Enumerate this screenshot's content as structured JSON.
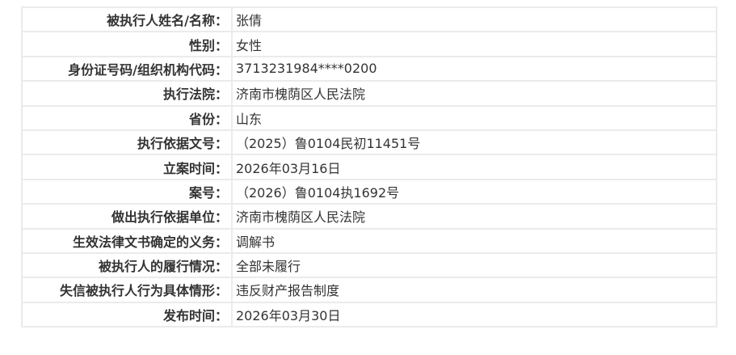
{
  "rows": [
    {
      "label": "被执行人姓名/名称：",
      "value": "张倩"
    },
    {
      "label": "性别：",
      "value": "女性"
    },
    {
      "label": "身份证号码/组织机构代码：",
      "value": "3713231984****0200"
    },
    {
      "label": "执行法院：",
      "value": "济南市槐荫区人民法院"
    },
    {
      "label": "省份：",
      "value": "山东"
    },
    {
      "label": "执行依据文号：",
      "value": "（2025）鲁0104民初11451号"
    },
    {
      "label": "立案时间：",
      "value": "2026年03月16日"
    },
    {
      "label": "案号：",
      "value": "（2026）鲁0104执1692号"
    },
    {
      "label": "做出执行依据单位：",
      "value": "济南市槐荫区人民法院"
    },
    {
      "label": "生效法律文书确定的义务：",
      "value": "调解书"
    },
    {
      "label": "被执行人的履行情况：",
      "value": "全部未履行"
    },
    {
      "label": "失信被执行人行为具体情形：",
      "value": "违反财产报告制度"
    },
    {
      "label": "发布时间：",
      "value": "2026年03月30日"
    }
  ]
}
